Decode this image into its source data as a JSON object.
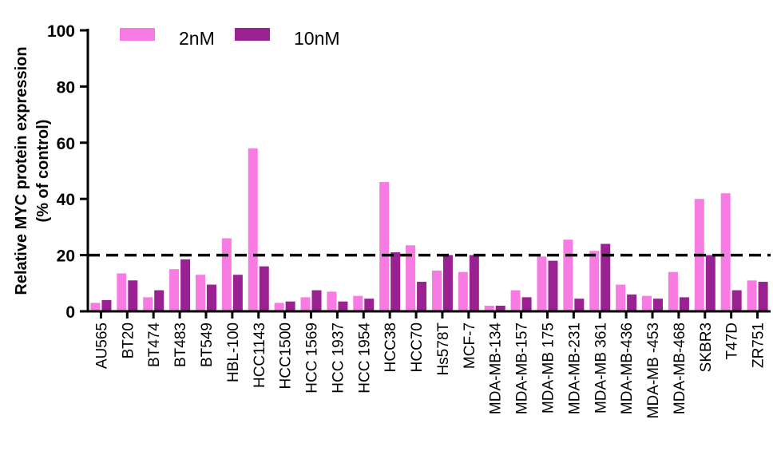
{
  "chart_data": {
    "type": "bar",
    "title": "",
    "xlabel": "",
    "ylabel": [
      "Relative MYC protein expression",
      "(% of control)"
    ],
    "ylim": [
      0,
      100
    ],
    "yticks": [
      0,
      20,
      40,
      60,
      80,
      100
    ],
    "reference_line": 20,
    "legend_position": "top-left",
    "categories": [
      "AU565",
      "BT20",
      "BT474",
      "BT483",
      "BT549",
      "HBL-100",
      "HCC1143",
      "HCC1500",
      "HCC 1569",
      "HCC 1937",
      "HCC 1954",
      "HCC38",
      "HCC70",
      "Hs578T",
      "MCF-7",
      "MDA-MB-134",
      "MDA-MB-157",
      "MDA-MB 175",
      "MDA-MB-231",
      "MDA-MB 361",
      "MDA-MB-436",
      "MDA-MB -453",
      "MDA-MB-468",
      "SKBR3",
      "T47D",
      "ZR751"
    ],
    "series": [
      {
        "name": "2nM",
        "color": "#f77be2",
        "values": [
          3,
          13.5,
          5,
          15,
          13,
          26,
          58,
          3,
          5,
          7,
          5.5,
          46,
          23.5,
          14.5,
          14,
          2,
          7.5,
          19.5,
          25.5,
          21.5,
          9.5,
          5.5,
          14,
          40,
          42,
          11
        ]
      },
      {
        "name": "10nM",
        "color": "#9a2192",
        "values": [
          4,
          11,
          7.5,
          18.5,
          9.5,
          13,
          16,
          3.5,
          7.5,
          3.5,
          4.5,
          21,
          10.5,
          20,
          20,
          2,
          5,
          18,
          4.5,
          24,
          6,
          4.5,
          5,
          20,
          7.5,
          10.5
        ]
      }
    ]
  }
}
